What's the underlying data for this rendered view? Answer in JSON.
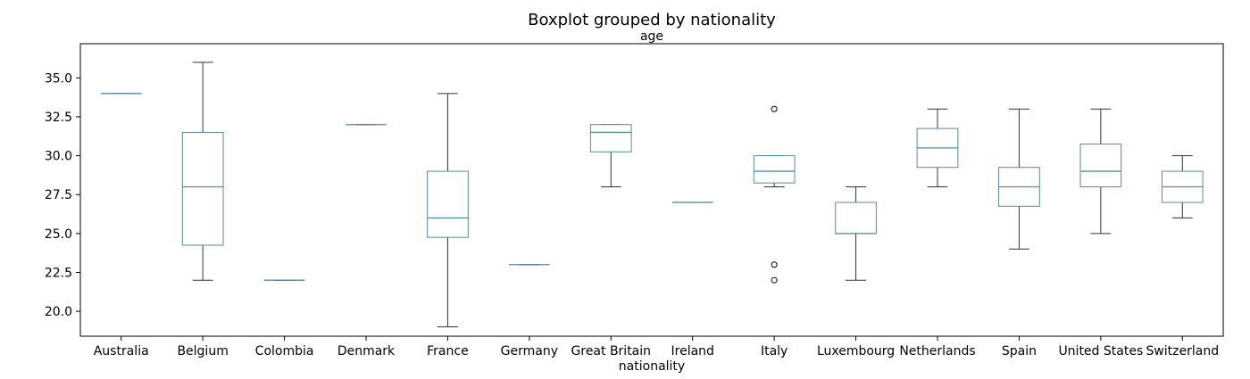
{
  "chart_data": {
    "type": "box",
    "title": "Boxplot grouped by nationality",
    "subtitle": "age",
    "xlabel": "nationality",
    "ylabel": "",
    "ylim": [
      18.4,
      37.2
    ],
    "yticks": [
      20.0,
      22.5,
      25.0,
      27.5,
      30.0,
      32.5,
      35.0
    ],
    "ytick_labels": [
      "20.0",
      "22.5",
      "25.0",
      "27.5",
      "30.0",
      "32.5",
      "35.0"
    ],
    "grid": false,
    "colors": {
      "box": "#5a8a9c",
      "median": "#5a8a9c",
      "whisker": "#333333",
      "flier": "#000000"
    },
    "categories": [
      "Australia",
      "Belgium",
      "Colombia",
      "Denmark",
      "France",
      "Germany",
      "Great Britain",
      "Ireland",
      "Italy",
      "Luxembourg",
      "Netherlands",
      "Spain",
      "United States",
      "Switzerland"
    ],
    "boxes": [
      {
        "whislo": 34,
        "q1": 34,
        "med": 34,
        "q3": 34,
        "whishi": 34,
        "fliers": []
      },
      {
        "whislo": 22,
        "q1": 24.25,
        "med": 28,
        "q3": 31.5,
        "whishi": 36,
        "fliers": []
      },
      {
        "whislo": 22,
        "q1": 22,
        "med": 22,
        "q3": 22,
        "whishi": 22,
        "fliers": []
      },
      {
        "whislo": 32,
        "q1": 32,
        "med": 32,
        "q3": 32,
        "whishi": 32,
        "fliers": []
      },
      {
        "whislo": 19,
        "q1": 24.75,
        "med": 26,
        "q3": 29,
        "whishi": 34,
        "fliers": []
      },
      {
        "whislo": 23,
        "q1": 23,
        "med": 23,
        "q3": 23,
        "whishi": 23,
        "fliers": []
      },
      {
        "whislo": 28,
        "q1": 30.25,
        "med": 31.5,
        "q3": 32,
        "whishi": 32,
        "fliers": []
      },
      {
        "whislo": 27,
        "q1": 27,
        "med": 27,
        "q3": 27,
        "whishi": 27,
        "fliers": []
      },
      {
        "whislo": 28,
        "q1": 28.25,
        "med": 29,
        "q3": 30,
        "whishi": 30,
        "fliers": [
          33,
          23,
          22
        ]
      },
      {
        "whislo": 22,
        "q1": 25,
        "med": 25,
        "q3": 27,
        "whishi": 28,
        "fliers": []
      },
      {
        "whislo": 28,
        "q1": 29.25,
        "med": 30.5,
        "q3": 31.75,
        "whishi": 33,
        "fliers": []
      },
      {
        "whislo": 24,
        "q1": 26.75,
        "med": 28,
        "q3": 29.25,
        "whishi": 33,
        "fliers": []
      },
      {
        "whislo": 25,
        "q1": 28,
        "med": 29,
        "q3": 30.75,
        "whishi": 33,
        "fliers": []
      },
      {
        "whislo": 26,
        "q1": 27,
        "med": 28,
        "q3": 29,
        "whishi": 30,
        "fliers": []
      }
    ]
  }
}
